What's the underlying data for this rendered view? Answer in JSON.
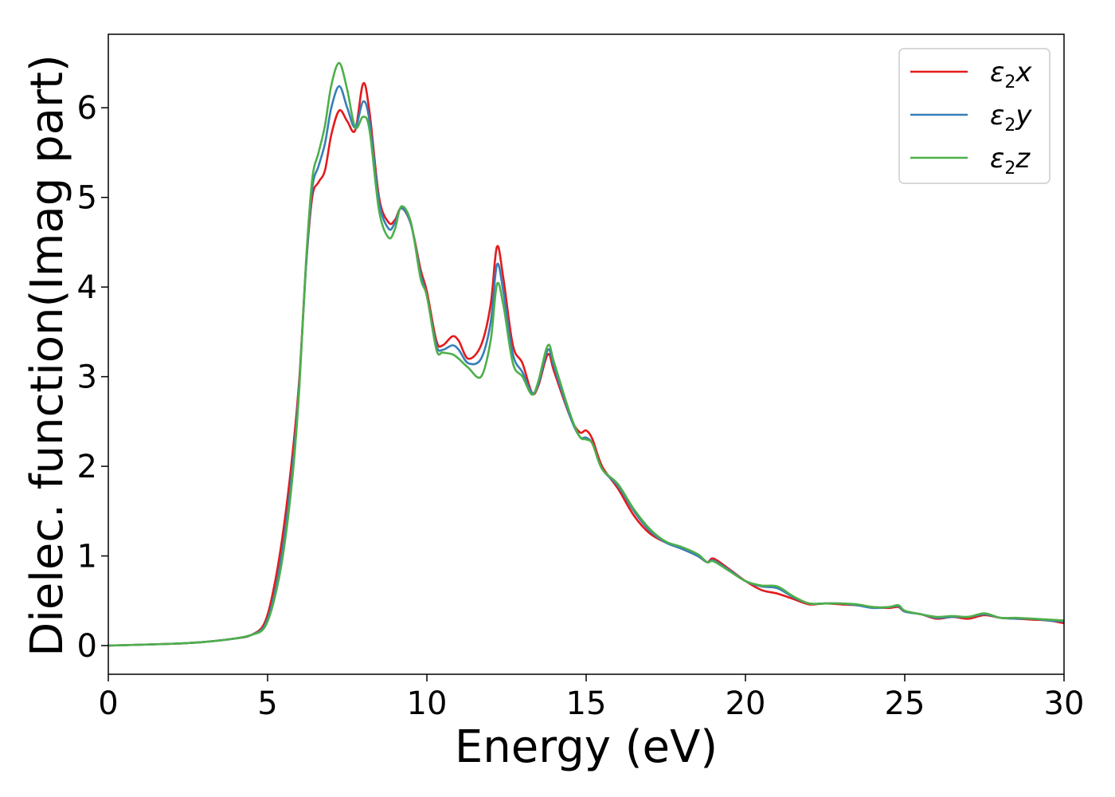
{
  "chart_data": {
    "type": "line",
    "xlabel": "Energy (eV)",
    "ylabel": "Dielec. function(Imag part)",
    "xlim": [
      0,
      30
    ],
    "ylim": [
      -0.32,
      6.82
    ],
    "xticks": [
      0,
      5,
      10,
      15,
      20,
      25,
      30
    ],
    "yticks": [
      0,
      1,
      2,
      3,
      4,
      5,
      6
    ],
    "grid": false,
    "legend_position": "top-right",
    "series": [
      {
        "name": "ε2x",
        "legend": {
          "main": "ε",
          "sub": "2",
          "tail": "x"
        },
        "color": "#e41a1c",
        "points": [
          [
            0,
            0.0
          ],
          [
            2,
            0.02
          ],
          [
            3,
            0.04
          ],
          [
            4,
            0.08
          ],
          [
            4.5,
            0.12
          ],
          [
            4.9,
            0.25
          ],
          [
            5.2,
            0.65
          ],
          [
            5.5,
            1.3
          ],
          [
            5.8,
            2.2
          ],
          [
            6.0,
            3.0
          ],
          [
            6.2,
            4.2
          ],
          [
            6.4,
            5.0
          ],
          [
            6.6,
            5.17
          ],
          [
            6.8,
            5.3
          ],
          [
            7.0,
            5.7
          ],
          [
            7.25,
            5.97
          ],
          [
            7.5,
            5.85
          ],
          [
            7.75,
            5.75
          ],
          [
            8.0,
            6.27
          ],
          [
            8.2,
            5.95
          ],
          [
            8.5,
            5.0
          ],
          [
            8.8,
            4.72
          ],
          [
            9.0,
            4.75
          ],
          [
            9.2,
            4.88
          ],
          [
            9.5,
            4.7
          ],
          [
            9.8,
            4.2
          ],
          [
            10.0,
            3.95
          ],
          [
            10.3,
            3.4
          ],
          [
            10.5,
            3.35
          ],
          [
            10.8,
            3.45
          ],
          [
            11.0,
            3.4
          ],
          [
            11.3,
            3.2
          ],
          [
            11.7,
            3.35
          ],
          [
            12.0,
            3.8
          ],
          [
            12.2,
            4.45
          ],
          [
            12.4,
            4.1
          ],
          [
            12.7,
            3.35
          ],
          [
            13.0,
            3.15
          ],
          [
            13.3,
            2.82
          ],
          [
            13.5,
            2.9
          ],
          [
            13.8,
            3.25
          ],
          [
            14.0,
            3.05
          ],
          [
            14.5,
            2.55
          ],
          [
            14.8,
            2.38
          ],
          [
            15.0,
            2.4
          ],
          [
            15.2,
            2.3
          ],
          [
            15.5,
            2.0
          ],
          [
            16.0,
            1.75
          ],
          [
            16.5,
            1.45
          ],
          [
            17.0,
            1.25
          ],
          [
            17.5,
            1.15
          ],
          [
            18.0,
            1.08
          ],
          [
            18.5,
            1.0
          ],
          [
            18.8,
            0.93
          ],
          [
            19.0,
            0.97
          ],
          [
            19.5,
            0.85
          ],
          [
            20.0,
            0.72
          ],
          [
            20.5,
            0.62
          ],
          [
            21.0,
            0.58
          ],
          [
            21.5,
            0.52
          ],
          [
            22.0,
            0.46
          ],
          [
            22.5,
            0.47
          ],
          [
            23.0,
            0.46
          ],
          [
            23.5,
            0.45
          ],
          [
            24.0,
            0.43
          ],
          [
            24.5,
            0.42
          ],
          [
            24.8,
            0.43
          ],
          [
            25.0,
            0.38
          ],
          [
            25.5,
            0.35
          ],
          [
            26.0,
            0.3
          ],
          [
            26.5,
            0.32
          ],
          [
            27.0,
            0.3
          ],
          [
            27.5,
            0.34
          ],
          [
            28.0,
            0.31
          ],
          [
            28.5,
            0.3
          ],
          [
            29.0,
            0.29
          ],
          [
            29.5,
            0.28
          ],
          [
            30.0,
            0.25
          ]
        ]
      },
      {
        "name": "ε2y",
        "legend": {
          "main": "ε",
          "sub": "2",
          "tail": "y"
        },
        "color": "#377eb8",
        "points": [
          [
            0,
            0.0
          ],
          [
            2,
            0.02
          ],
          [
            3,
            0.04
          ],
          [
            4,
            0.08
          ],
          [
            4.5,
            0.12
          ],
          [
            4.9,
            0.22
          ],
          [
            5.2,
            0.55
          ],
          [
            5.5,
            1.15
          ],
          [
            5.8,
            2.05
          ],
          [
            6.0,
            2.95
          ],
          [
            6.2,
            4.2
          ],
          [
            6.4,
            5.1
          ],
          [
            6.6,
            5.35
          ],
          [
            6.8,
            5.6
          ],
          [
            7.0,
            6.0
          ],
          [
            7.25,
            6.24
          ],
          [
            7.5,
            6.0
          ],
          [
            7.75,
            5.78
          ],
          [
            8.0,
            6.07
          ],
          [
            8.2,
            5.85
          ],
          [
            8.5,
            4.95
          ],
          [
            8.8,
            4.65
          ],
          [
            9.0,
            4.72
          ],
          [
            9.2,
            4.88
          ],
          [
            9.5,
            4.7
          ],
          [
            9.8,
            4.15
          ],
          [
            10.0,
            3.9
          ],
          [
            10.3,
            3.35
          ],
          [
            10.5,
            3.3
          ],
          [
            10.8,
            3.35
          ],
          [
            11.0,
            3.3
          ],
          [
            11.3,
            3.15
          ],
          [
            11.7,
            3.2
          ],
          [
            12.0,
            3.6
          ],
          [
            12.2,
            4.25
          ],
          [
            12.4,
            3.95
          ],
          [
            12.7,
            3.25
          ],
          [
            13.0,
            3.05
          ],
          [
            13.3,
            2.82
          ],
          [
            13.5,
            2.92
          ],
          [
            13.8,
            3.3
          ],
          [
            14.0,
            3.1
          ],
          [
            14.5,
            2.55
          ],
          [
            14.8,
            2.33
          ],
          [
            15.0,
            2.32
          ],
          [
            15.2,
            2.25
          ],
          [
            15.5,
            1.97
          ],
          [
            16.0,
            1.78
          ],
          [
            16.5,
            1.5
          ],
          [
            17.0,
            1.28
          ],
          [
            17.5,
            1.15
          ],
          [
            18.0,
            1.08
          ],
          [
            18.5,
            1.0
          ],
          [
            18.8,
            0.93
          ],
          [
            19.0,
            0.95
          ],
          [
            19.5,
            0.84
          ],
          [
            20.0,
            0.72
          ],
          [
            20.5,
            0.66
          ],
          [
            21.0,
            0.64
          ],
          [
            21.5,
            0.54
          ],
          [
            22.0,
            0.47
          ],
          [
            22.5,
            0.47
          ],
          [
            23.0,
            0.47
          ],
          [
            23.5,
            0.45
          ],
          [
            24.0,
            0.42
          ],
          [
            24.5,
            0.43
          ],
          [
            24.8,
            0.44
          ],
          [
            25.0,
            0.38
          ],
          [
            25.5,
            0.35
          ],
          [
            26.0,
            0.31
          ],
          [
            26.5,
            0.32
          ],
          [
            27.0,
            0.32
          ],
          [
            27.5,
            0.35
          ],
          [
            28.0,
            0.31
          ],
          [
            28.5,
            0.3
          ],
          [
            29.0,
            0.3
          ],
          [
            29.5,
            0.28
          ],
          [
            30.0,
            0.27
          ]
        ]
      },
      {
        "name": "ε2z",
        "legend": {
          "main": "ε",
          "sub": "2",
          "tail": "z"
        },
        "color": "#4daf4a",
        "points": [
          [
            0,
            0.0
          ],
          [
            2,
            0.02
          ],
          [
            3,
            0.04
          ],
          [
            4,
            0.08
          ],
          [
            4.5,
            0.12
          ],
          [
            4.9,
            0.2
          ],
          [
            5.2,
            0.5
          ],
          [
            5.5,
            1.05
          ],
          [
            5.8,
            1.95
          ],
          [
            6.0,
            2.9
          ],
          [
            6.2,
            4.25
          ],
          [
            6.4,
            5.2
          ],
          [
            6.6,
            5.5
          ],
          [
            6.8,
            5.8
          ],
          [
            7.0,
            6.25
          ],
          [
            7.25,
            6.5
          ],
          [
            7.5,
            6.2
          ],
          [
            7.75,
            5.78
          ],
          [
            8.0,
            5.9
          ],
          [
            8.2,
            5.75
          ],
          [
            8.5,
            4.85
          ],
          [
            8.8,
            4.55
          ],
          [
            9.0,
            4.65
          ],
          [
            9.2,
            4.9
          ],
          [
            9.5,
            4.72
          ],
          [
            9.8,
            4.1
          ],
          [
            10.0,
            3.9
          ],
          [
            10.3,
            3.3
          ],
          [
            10.5,
            3.27
          ],
          [
            10.8,
            3.25
          ],
          [
            11.0,
            3.2
          ],
          [
            11.3,
            3.1
          ],
          [
            11.7,
            3.0
          ],
          [
            12.0,
            3.4
          ],
          [
            12.2,
            4.03
          ],
          [
            12.4,
            3.8
          ],
          [
            12.7,
            3.15
          ],
          [
            13.0,
            3.0
          ],
          [
            13.3,
            2.8
          ],
          [
            13.5,
            2.95
          ],
          [
            13.8,
            3.35
          ],
          [
            14.0,
            3.15
          ],
          [
            14.5,
            2.58
          ],
          [
            14.8,
            2.33
          ],
          [
            15.0,
            2.3
          ],
          [
            15.2,
            2.25
          ],
          [
            15.5,
            1.97
          ],
          [
            16.0,
            1.8
          ],
          [
            16.5,
            1.52
          ],
          [
            17.0,
            1.3
          ],
          [
            17.5,
            1.16
          ],
          [
            18.0,
            1.1
          ],
          [
            18.5,
            1.02
          ],
          [
            18.8,
            0.93
          ],
          [
            19.0,
            0.94
          ],
          [
            19.5,
            0.83
          ],
          [
            20.0,
            0.72
          ],
          [
            20.5,
            0.67
          ],
          [
            21.0,
            0.66
          ],
          [
            21.5,
            0.55
          ],
          [
            22.0,
            0.47
          ],
          [
            22.5,
            0.47
          ],
          [
            23.0,
            0.47
          ],
          [
            23.5,
            0.46
          ],
          [
            24.0,
            0.43
          ],
          [
            24.5,
            0.43
          ],
          [
            24.8,
            0.45
          ],
          [
            25.0,
            0.39
          ],
          [
            25.5,
            0.35
          ],
          [
            26.0,
            0.32
          ],
          [
            26.5,
            0.33
          ],
          [
            27.0,
            0.32
          ],
          [
            27.5,
            0.36
          ],
          [
            28.0,
            0.31
          ],
          [
            28.5,
            0.31
          ],
          [
            29.0,
            0.3
          ],
          [
            29.5,
            0.29
          ],
          [
            30.0,
            0.28
          ]
        ]
      }
    ]
  }
}
